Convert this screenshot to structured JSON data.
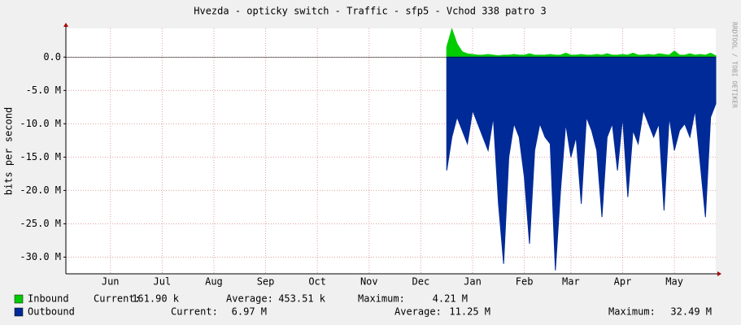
{
  "chart_data": {
    "type": "area",
    "title": "Hvezda - opticky switch - Traffic - sfp5 - Vchod 338 patro 3",
    "ylabel": "bits per second",
    "watermark": "RRDTOOL / TOBI OETIKER",
    "xlim": [
      -0.36,
      12.2
    ],
    "xticks": [
      {
        "value": 0.5,
        "label": "Jun"
      },
      {
        "value": 1.5,
        "label": "Jul"
      },
      {
        "value": 2.5,
        "label": "Aug"
      },
      {
        "value": 3.5,
        "label": "Sep"
      },
      {
        "value": 4.5,
        "label": "Oct"
      },
      {
        "value": 5.5,
        "label": "Nov"
      },
      {
        "value": 6.5,
        "label": "Dec"
      },
      {
        "value": 7.5,
        "label": "Jan"
      },
      {
        "value": 8.5,
        "label": "Feb"
      },
      {
        "value": 9.4,
        "label": "Mar"
      },
      {
        "value": 10.4,
        "label": "Apr"
      },
      {
        "value": 11.4,
        "label": "May"
      }
    ],
    "ylim": [
      -32500000,
      4300000
    ],
    "yticks": [
      {
        "value": 0,
        "label": "0.0"
      },
      {
        "value": -5000000,
        "label": "-5.0 M"
      },
      {
        "value": -10000000,
        "label": "-10.0 M"
      },
      {
        "value": -15000000,
        "label": "-15.0 M"
      },
      {
        "value": -20000000,
        "label": "-20.0 M"
      },
      {
        "value": -25000000,
        "label": "-25.0 M"
      },
      {
        "value": -30000000,
        "label": "-30.0 M"
      }
    ],
    "grid": true,
    "x": [
      7.0,
      7.1,
      7.2,
      7.3,
      7.4,
      7.5,
      7.6,
      7.7,
      7.8,
      7.9,
      8.0,
      8.1,
      8.2,
      8.3,
      8.4,
      8.5,
      8.6,
      8.7,
      8.8,
      8.9,
      9.0,
      9.1,
      9.2,
      9.3,
      9.4,
      9.5,
      9.6,
      9.7,
      9.8,
      9.9,
      10.0,
      10.1,
      10.2,
      10.3,
      10.4,
      10.5,
      10.6,
      10.7,
      10.8,
      10.9,
      11.0,
      11.1,
      11.2,
      11.3,
      11.4,
      11.5,
      11.6,
      11.7,
      11.8,
      11.9,
      12.0,
      12.1,
      12.2
    ],
    "series": [
      {
        "name": "Inbound",
        "color": "#00cc00",
        "stats": [
          {
            "label": "Current:",
            "value": "161.90 k"
          },
          {
            "label": "Average:",
            "value": "453.51 k"
          },
          {
            "label": "Maximum:",
            "value": "4.21 M"
          }
        ],
        "values": [
          1500000.0,
          4200000.0,
          2000000.0,
          800000.0,
          500000.0,
          400000.0,
          300000.0,
          300000.0,
          400000.0,
          300000.0,
          200000.0,
          300000.0,
          300000.0,
          400000.0,
          300000.0,
          300000.0,
          500000.0,
          300000.0,
          300000.0,
          300000.0,
          400000.0,
          300000.0,
          300000.0,
          600000.0,
          300000.0,
          300000.0,
          400000.0,
          300000.0,
          300000.0,
          400000.0,
          300000.0,
          500000.0,
          300000.0,
          300000.0,
          400000.0,
          300000.0,
          600000.0,
          300000.0,
          300000.0,
          400000.0,
          300000.0,
          500000.0,
          400000.0,
          300000.0,
          900000.0,
          300000.0,
          300000.0,
          500000.0,
          300000.0,
          400000.0,
          300000.0,
          600000.0,
          200000.0
        ]
      },
      {
        "name": "Outbound",
        "color": "#002a97",
        "stats": [
          {
            "label": "Current:",
            "value": "6.97 M"
          },
          {
            "label": "Average:",
            "value": "11.25 M"
          },
          {
            "label": "Maximum:",
            "value": "32.49 M"
          }
        ],
        "values": [
          -17000000.0,
          -12000000.0,
          -9000000.0,
          -11000000.0,
          -13000000.0,
          -8000000.0,
          -10000000.0,
          -12000000.0,
          -14000000.0,
          -9000000.0,
          -22000000.0,
          -31000000.0,
          -15000000.0,
          -10000000.0,
          -12000000.0,
          -18000000.0,
          -28000000.0,
          -14000000.0,
          -10000000.0,
          -12000000.0,
          -13000000.0,
          -32000000.0,
          -20000000.0,
          -10000000.0,
          -15000000.0,
          -12000000.0,
          -22000000.0,
          -9000000.0,
          -11000000.0,
          -14000000.0,
          -24000000.0,
          -12000000.0,
          -10000000.0,
          -17000000.0,
          -9000000.0,
          -21000000.0,
          -11000000.0,
          -13000000.0,
          -8000000.0,
          -10000000.0,
          -12000000.0,
          -10000000.0,
          -23000000.0,
          -9000000.0,
          -14000000.0,
          -11000000.0,
          -10000000.0,
          -12000000.0,
          -8000000.0,
          -16000000.0,
          -24000000.0,
          -9000000.0,
          -7000000.0
        ]
      }
    ]
  }
}
